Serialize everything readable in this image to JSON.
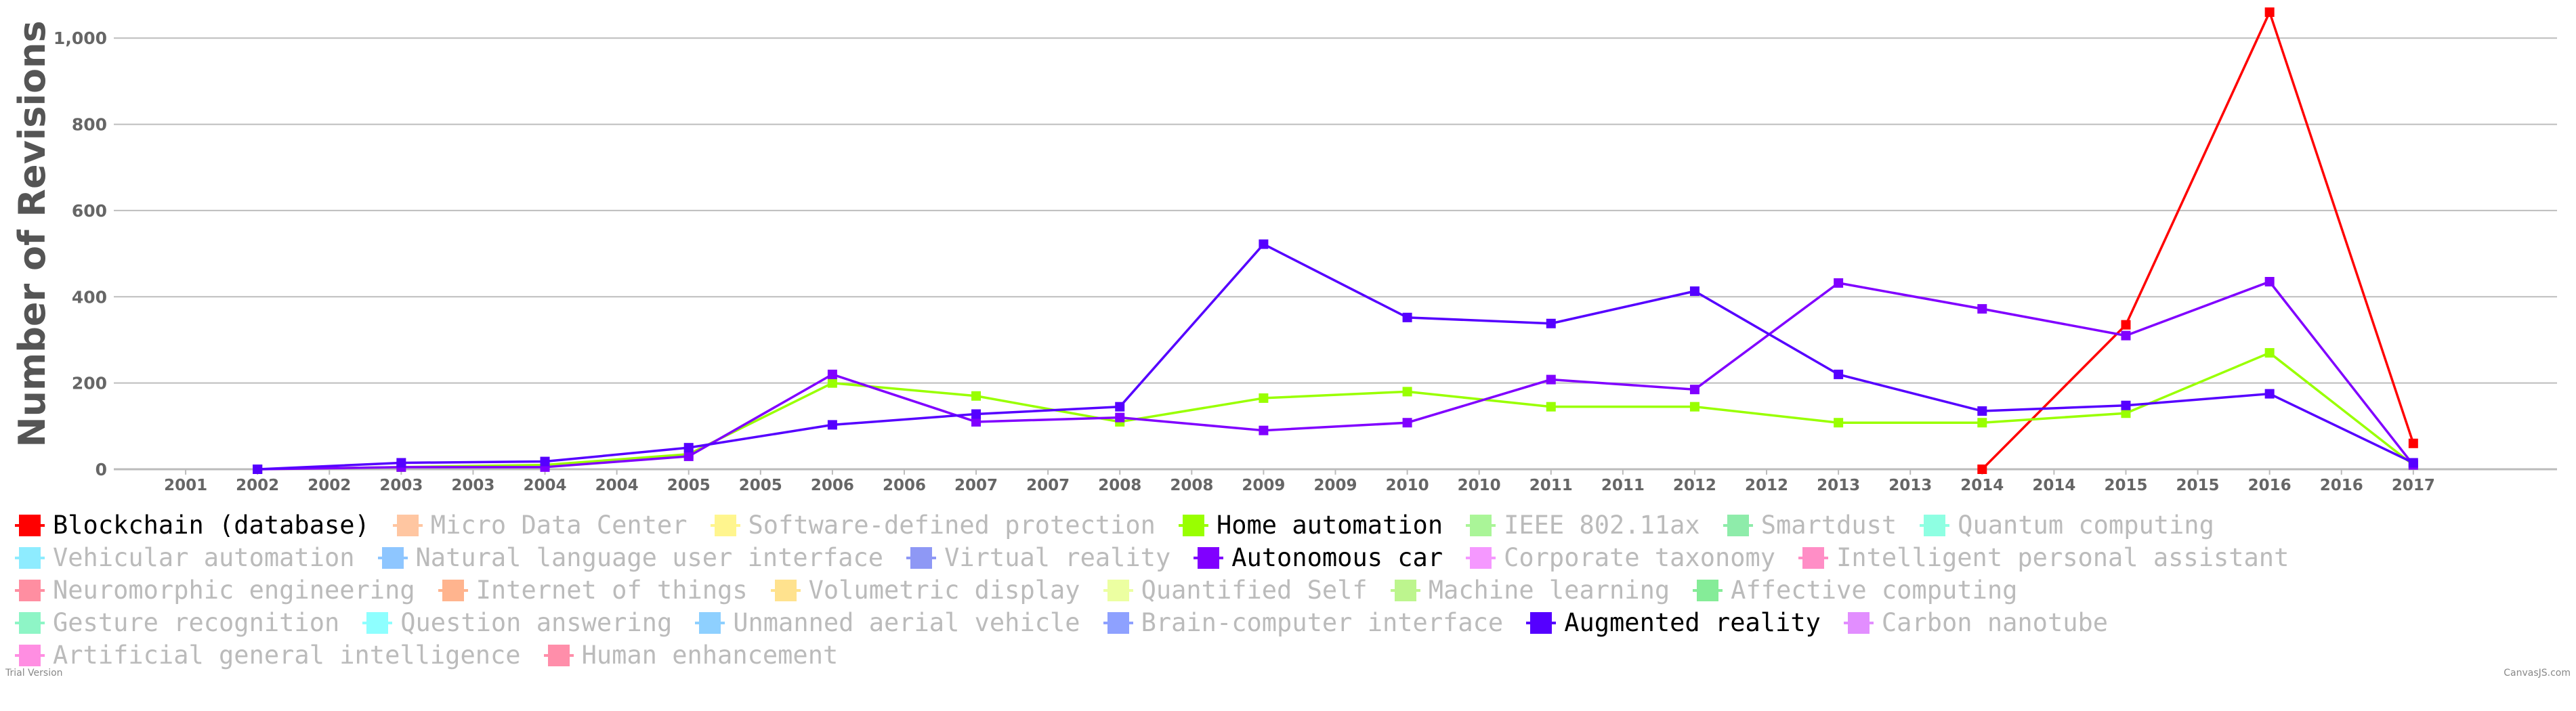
{
  "chart_data": {
    "type": "line",
    "title": "",
    "ylabel": "Number of Revisions",
    "xlabel": "",
    "ylim": [
      0,
      1060
    ],
    "xlim": [
      2001.5,
      2018.5
    ],
    "yticks": [
      0,
      200,
      400,
      600,
      800,
      1000
    ],
    "ytick_labels": [
      "0",
      "200",
      "400",
      "600",
      "800",
      "1,000"
    ],
    "xtick_labels": [
      "2001",
      "2002",
      "2002",
      "2003",
      "2003",
      "2004",
      "2004",
      "2005",
      "2005",
      "2006",
      "2006",
      "2007",
      "2007",
      "2008",
      "2008",
      "2009",
      "2009",
      "2010",
      "2010",
      "2011",
      "2011",
      "2012",
      "2012",
      "2013",
      "2013",
      "2014",
      "2014",
      "2015",
      "2015",
      "2016",
      "2016",
      "2017"
    ],
    "grid": "horizontal",
    "legend_position": "bottom",
    "series": [
      {
        "name": "Blockchain (database)",
        "color": "#ff0000",
        "x": [
          2014.5,
          2015.5,
          2016.5,
          2017.5
        ],
        "y": [
          0,
          335,
          1060,
          60
        ]
      },
      {
        "name": "Home automation",
        "color": "#99ff00",
        "x": [
          2002.5,
          2003.5,
          2004.5,
          2005.5,
          2006.5,
          2007.5,
          2008.5,
          2009.5,
          2010.5,
          2011.5,
          2012.5,
          2013.5,
          2014.5,
          2015.5,
          2016.5,
          2017.5
        ],
        "y": [
          0,
          5,
          10,
          35,
          200,
          170,
          110,
          165,
          180,
          145,
          145,
          108,
          108,
          130,
          270,
          10
        ]
      },
      {
        "name": "Autonomous car",
        "color": "#8000ff",
        "x": [
          2002.5,
          2003.5,
          2004.5,
          2005.5,
          2006.5,
          2007.5,
          2008.5,
          2009.5,
          2010.5,
          2011.5,
          2012.5,
          2013.5,
          2014.5,
          2015.5,
          2016.5,
          2017.5
        ],
        "y": [
          0,
          5,
          5,
          30,
          220,
          110,
          120,
          90,
          108,
          208,
          185,
          432,
          372,
          310,
          435,
          10
        ]
      },
      {
        "name": "Augmented reality",
        "color": "#5500ff",
        "x": [
          2002.5,
          2003.5,
          2004.5,
          2005.5,
          2006.5,
          2007.5,
          2008.5,
          2009.5,
          2010.5,
          2011.5,
          2012.5,
          2013.5,
          2014.5,
          2015.5,
          2016.5,
          2017.5
        ],
        "y": [
          0,
          15,
          18,
          50,
          103,
          128,
          145,
          522,
          352,
          338,
          413,
          220,
          135,
          148,
          175,
          15
        ]
      }
    ]
  },
  "legend": {
    "rows": [
      [
        {
          "label": "Blockchain (database)",
          "color": "#ff0000",
          "active": true
        },
        {
          "label": "Micro Data Center",
          "color": "#ff9955",
          "active": false
        },
        {
          "label": "Software-defined protection",
          "color": "#ffee33",
          "active": false
        },
        {
          "label": "Home automation",
          "color": "#99ff00",
          "active": true
        },
        {
          "label": "IEEE 802.11ax",
          "color": "#66ee44",
          "active": false
        },
        {
          "label": "Smartdust",
          "color": "#33dd66",
          "active": false
        },
        {
          "label": "Quantum computing",
          "color": "#33ffcc",
          "active": false
        }
      ],
      [
        {
          "label": "Vehicular automation",
          "color": "#33ddff",
          "active": false
        },
        {
          "label": "Natural language user interface",
          "color": "#3399ff",
          "active": false
        },
        {
          "label": "Virtual reality",
          "color": "#3344ee",
          "active": false
        },
        {
          "label": "Autonomous car",
          "color": "#8000ff",
          "active": true
        },
        {
          "label": "Corporate taxonomy",
          "color": "#ee44ff",
          "active": false
        },
        {
          "label": "Intelligent personal assistant",
          "color": "#ff3399",
          "active": false
        }
      ],
      [
        {
          "label": "Neuromorphic engineering",
          "color": "#ff3355",
          "active": false
        },
        {
          "label": "Internet of things",
          "color": "#ff7733",
          "active": false
        },
        {
          "label": "Volumetric display",
          "color": "#ffcc33",
          "active": false
        },
        {
          "label": "Quantified Self",
          "color": "#ddff55",
          "active": false
        },
        {
          "label": "Machine learning",
          "color": "#88ee33",
          "active": false
        },
        {
          "label": "Affective computing",
          "color": "#22dd44",
          "active": false
        }
      ],
      [
        {
          "label": "Gesture recognition",
          "color": "#33ee99",
          "active": false
        },
        {
          "label": "Question answering",
          "color": "#33ffff",
          "active": false
        },
        {
          "label": "Unmanned aerial vehicle",
          "color": "#33aaff",
          "active": false
        },
        {
          "label": "Brain-computer interface",
          "color": "#3355ff",
          "active": false
        },
        {
          "label": "Augmented reality",
          "color": "#5500ff",
          "active": true
        },
        {
          "label": "Carbon nanotube",
          "color": "#cc33ff",
          "active": false
        }
      ],
      [
        {
          "label": "Artificial general intelligence",
          "color": "#ff33cc",
          "active": false
        },
        {
          "label": "Human enhancement",
          "color": "#ff3366",
          "active": false
        }
      ]
    ]
  },
  "watermark_left": "Trial Version",
  "watermark_right": "CanvasJS.com"
}
